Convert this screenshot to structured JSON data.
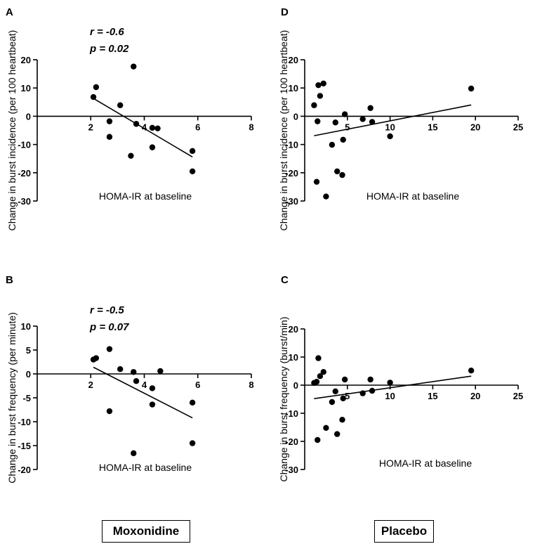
{
  "chart_data": [
    {
      "id": "A",
      "type": "scatter",
      "panel_label": "A",
      "ylabel": "Change in burst incidence (per 100 heartbeat)",
      "xlabel": "HOMA-IR at baseline",
      "xlim": [
        0,
        8
      ],
      "ylim": [
        -30,
        20
      ],
      "xticks": [
        2,
        4,
        6,
        8
      ],
      "yticks": [
        -30,
        -20,
        -10,
        0,
        10,
        20
      ],
      "stats": [
        "r = -0.6",
        "p = 0.02"
      ],
      "points": [
        [
          2.1,
          6.8
        ],
        [
          2.2,
          10.3
        ],
        [
          2.7,
          -1.8
        ],
        [
          2.7,
          -7.3
        ],
        [
          3.1,
          3.9
        ],
        [
          3.5,
          -14.0
        ],
        [
          3.6,
          17.6
        ],
        [
          3.7,
          -2.7
        ],
        [
          4.3,
          -4.1
        ],
        [
          4.3,
          -11.0
        ],
        [
          4.5,
          -4.3
        ],
        [
          5.8,
          -12.3
        ],
        [
          5.8,
          -19.5
        ]
      ],
      "fit": [
        [
          2.1,
          6.3
        ],
        [
          5.8,
          -14.4
        ]
      ]
    },
    {
      "id": "D",
      "type": "scatter",
      "panel_label": "D",
      "ylabel": "Change in burst incidence (per 100 heartbeat)",
      "xlabel": "HOMA-IR at baseline",
      "xlim": [
        0,
        25
      ],
      "ylim": [
        -30,
        20
      ],
      "xticks": [
        5,
        10,
        15,
        20,
        25
      ],
      "yticks": [
        -30,
        -20,
        -10,
        0,
        10,
        20
      ],
      "stats": [],
      "points": [
        [
          1.1,
          3.9
        ],
        [
          1.5,
          -1.8
        ],
        [
          1.6,
          11.0
        ],
        [
          1.8,
          7.2
        ],
        [
          2.2,
          11.6
        ],
        [
          2.5,
          -28.4
        ],
        [
          1.4,
          -23.2
        ],
        [
          3.2,
          -10.1
        ],
        [
          3.6,
          -2.2
        ],
        [
          3.8,
          -19.5
        ],
        [
          4.4,
          -20.8
        ],
        [
          4.5,
          -8.3
        ],
        [
          4.7,
          0.7
        ],
        [
          6.8,
          -1.0
        ],
        [
          7.7,
          2.9
        ],
        [
          7.9,
          -2.0
        ],
        [
          10.0,
          -7.1
        ],
        [
          19.5,
          9.8
        ]
      ],
      "fit": [
        [
          1.1,
          -6.9
        ],
        [
          19.5,
          4.0
        ]
      ]
    },
    {
      "id": "B",
      "type": "scatter",
      "panel_label": "B",
      "ylabel": "Change in burst frequency (per minute)",
      "xlabel": "HOMA-IR at baseline",
      "xlim": [
        0,
        8
      ],
      "ylim": [
        -20,
        10
      ],
      "xticks": [
        2,
        4,
        6,
        8
      ],
      "yticks": [
        -20,
        -15,
        -10,
        -5,
        0,
        5,
        10
      ],
      "stats": [
        "r = -0.5",
        "p = 0.07"
      ],
      "points": [
        [
          2.1,
          3.0
        ],
        [
          2.2,
          3.3
        ],
        [
          2.7,
          5.2
        ],
        [
          2.7,
          -7.8
        ],
        [
          3.1,
          1.0
        ],
        [
          3.6,
          -16.6
        ],
        [
          3.6,
          0.4
        ],
        [
          3.7,
          -1.5
        ],
        [
          4.3,
          -3.0
        ],
        [
          4.3,
          -6.4
        ],
        [
          4.6,
          0.6
        ],
        [
          5.8,
          -6.0
        ],
        [
          5.8,
          -14.5
        ]
      ],
      "fit": [
        [
          2.1,
          1.4
        ],
        [
          5.8,
          -9.2
        ]
      ]
    },
    {
      "id": "C",
      "type": "scatter",
      "panel_label": "C",
      "ylabel": "Change in burst frequency (burst/min)",
      "xlabel": "HOMA-IR at baseline",
      "xlim": [
        0,
        25
      ],
      "ylim": [
        -30,
        20
      ],
      "xticks": [
        5,
        10,
        15,
        20,
        25
      ],
      "yticks": [
        -30,
        -20,
        -10,
        0,
        10,
        20
      ],
      "stats": [],
      "points": [
        [
          1.1,
          0.8
        ],
        [
          1.4,
          1.2
        ],
        [
          1.5,
          -19.5
        ],
        [
          1.6,
          9.6
        ],
        [
          1.8,
          3.2
        ],
        [
          2.2,
          4.7
        ],
        [
          2.5,
          -15.2
        ],
        [
          3.2,
          -6.0
        ],
        [
          3.6,
          -2.2
        ],
        [
          3.8,
          -17.4
        ],
        [
          4.4,
          -12.3
        ],
        [
          4.5,
          -4.7
        ],
        [
          4.7,
          2.0
        ],
        [
          6.8,
          -2.9
        ],
        [
          7.7,
          2.0
        ],
        [
          7.9,
          -2.0
        ],
        [
          10.0,
          0.9
        ],
        [
          19.5,
          5.2
        ]
      ],
      "fit": [
        [
          1.1,
          -4.8
        ],
        [
          19.5,
          3.2
        ]
      ]
    }
  ],
  "group_labels": {
    "left": "Moxonidine",
    "right": "Placebo"
  }
}
